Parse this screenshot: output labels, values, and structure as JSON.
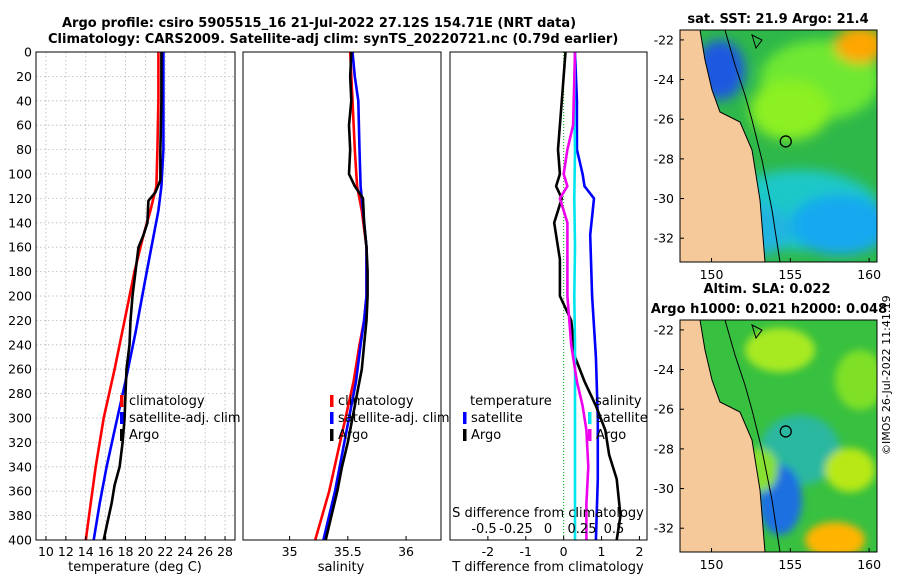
{
  "header": {
    "title_line1": "Argo profile: csiro 5905515_16 21-Jul-2022 27.12S 154.71E (NRT data)",
    "title_line2": "Climatology: CARS2009. Satellite-adj clim: synTS_20220721.nc (0.79d earlier)"
  },
  "colors": {
    "climatology": "#ff0000",
    "satellite": "#0000ff",
    "argo": "#000000",
    "sal_sat": "#00e5ee",
    "sal_argo": "#ee00ee",
    "land": "#f5c99a"
  },
  "chart_data": [
    {
      "type": "line",
      "name": "temperature-panel",
      "xlabel": "temperature (deg C)",
      "xlim": [
        9,
        29
      ],
      "ylim": [
        0,
        400
      ],
      "xticks": [
        10,
        12,
        14,
        16,
        18,
        20,
        22,
        24,
        26,
        28
      ],
      "yticks": [
        0,
        20,
        40,
        60,
        80,
        100,
        120,
        140,
        160,
        180,
        200,
        220,
        240,
        260,
        280,
        300,
        320,
        340,
        360,
        380,
        400
      ],
      "legend": [
        "climatology",
        "satellite-adj. clim",
        "Argo"
      ],
      "series": [
        {
          "name": "climatology",
          "color": "#ff0000",
          "points": [
            [
              21.3,
              0
            ],
            [
              21.3,
              40
            ],
            [
              21.2,
              80
            ],
            [
              21.1,
              110
            ],
            [
              20.5,
              130
            ],
            [
              19.8,
              150
            ],
            [
              18.9,
              180
            ],
            [
              17.9,
              220
            ],
            [
              16.9,
              260
            ],
            [
              15.8,
              300
            ],
            [
              15.0,
              340
            ],
            [
              14.5,
              370
            ],
            [
              14.0,
              400
            ]
          ]
        },
        {
          "name": "satellite-adj. clim",
          "color": "#0000ff",
          "points": [
            [
              21.8,
              0
            ],
            [
              21.8,
              40
            ],
            [
              21.8,
              80
            ],
            [
              21.6,
              110
            ],
            [
              21.3,
              130
            ],
            [
              20.6,
              160
            ],
            [
              19.9,
              190
            ],
            [
              19.0,
              230
            ],
            [
              18.0,
              270
            ],
            [
              16.9,
              310
            ],
            [
              16.1,
              340
            ],
            [
              15.4,
              370
            ],
            [
              14.8,
              400
            ]
          ]
        },
        {
          "name": "Argo",
          "color": "#000000",
          "points": [
            [
              21.6,
              0
            ],
            [
              21.6,
              40
            ],
            [
              21.5,
              80
            ],
            [
              21.5,
              105
            ],
            [
              21.0,
              115
            ],
            [
              20.3,
              122
            ],
            [
              20.2,
              140
            ],
            [
              19.8,
              150
            ],
            [
              19.3,
              160
            ],
            [
              19.0,
              180
            ],
            [
              18.7,
              200
            ],
            [
              18.5,
              220
            ],
            [
              18.4,
              240
            ],
            [
              18.1,
              260
            ],
            [
              18.0,
              280
            ],
            [
              17.9,
              300
            ],
            [
              17.7,
              320
            ],
            [
              17.4,
              340
            ],
            [
              16.9,
              355
            ],
            [
              16.6,
              370
            ],
            [
              16.2,
              385
            ],
            [
              15.8,
              400
            ]
          ]
        }
      ]
    },
    {
      "type": "line",
      "name": "salinity-panel",
      "xlabel": "salinity",
      "xlim": [
        34.6,
        36.3
      ],
      "ylim": [
        0,
        400
      ],
      "xticks": [
        35,
        35.5,
        36
      ],
      "legend": [
        "climatology",
        "satellite-adj. clim",
        "Argo"
      ],
      "series": [
        {
          "name": "climatology",
          "color": "#ff0000",
          "points": [
            [
              35.52,
              0
            ],
            [
              35.54,
              40
            ],
            [
              35.56,
              80
            ],
            [
              35.58,
              110
            ],
            [
              35.62,
              130
            ],
            [
              35.66,
              160
            ],
            [
              35.66,
              180
            ],
            [
              35.66,
              200
            ],
            [
              35.64,
              220
            ],
            [
              35.6,
              240
            ],
            [
              35.55,
              270
            ],
            [
              35.48,
              300
            ],
            [
              35.41,
              330
            ],
            [
              35.34,
              360
            ],
            [
              35.28,
              380
            ],
            [
              35.22,
              400
            ]
          ]
        },
        {
          "name": "satellite-adj. clim",
          "color": "#0000ff",
          "points": [
            [
              35.54,
              0
            ],
            [
              35.56,
              20
            ],
            [
              35.59,
              40
            ],
            [
              35.6,
              80
            ],
            [
              35.61,
              110
            ],
            [
              35.63,
              130
            ],
            [
              35.66,
              160
            ],
            [
              35.66,
              180
            ],
            [
              35.66,
              200
            ],
            [
              35.64,
              220
            ],
            [
              35.61,
              240
            ],
            [
              35.57,
              270
            ],
            [
              35.51,
              300
            ],
            [
              35.45,
              330
            ],
            [
              35.39,
              360
            ],
            [
              35.34,
              380
            ],
            [
              35.29,
              400
            ]
          ]
        },
        {
          "name": "Argo",
          "color": "#000000",
          "points": [
            [
              35.53,
              0
            ],
            [
              35.52,
              20
            ],
            [
              35.53,
              40
            ],
            [
              35.51,
              60
            ],
            [
              35.52,
              80
            ],
            [
              35.51,
              100
            ],
            [
              35.56,
              110
            ],
            [
              35.63,
              120
            ],
            [
              35.64,
              140
            ],
            [
              35.66,
              160
            ],
            [
              35.67,
              180
            ],
            [
              35.67,
              200
            ],
            [
              35.66,
              220
            ],
            [
              35.64,
              240
            ],
            [
              35.62,
              260
            ],
            [
              35.58,
              280
            ],
            [
              35.54,
              300
            ],
            [
              35.5,
              320
            ],
            [
              35.45,
              340
            ],
            [
              35.41,
              360
            ],
            [
              35.36,
              380
            ],
            [
              35.31,
              400
            ]
          ]
        }
      ]
    },
    {
      "type": "line",
      "name": "difference-panel",
      "xlabel": "T difference from climatology",
      "xlabel_top": "S difference from climatology",
      "xlim": [
        -3,
        2.2
      ],
      "ylim": [
        0,
        400
      ],
      "xticks": [
        -2,
        -1,
        0,
        1,
        2
      ],
      "s_ticks": [
        "-0.5",
        "-0.25",
        "0",
        "0.25",
        "0.5"
      ],
      "legend_left_title": "temperature",
      "legend_right_title": "salinity",
      "legend_left": [
        "satellite",
        "Argo"
      ],
      "legend_right": [
        "satellite",
        "Argo"
      ],
      "series": [
        {
          "name": "T satellite",
          "color": "#0000ff",
          "points": [
            [
              0.3,
              0
            ],
            [
              0.35,
              40
            ],
            [
              0.35,
              80
            ],
            [
              0.5,
              100
            ],
            [
              0.55,
              110
            ],
            [
              0.8,
              120
            ],
            [
              0.7,
              150
            ],
            [
              0.75,
              200
            ],
            [
              0.85,
              250
            ],
            [
              0.9,
              300
            ],
            [
              0.9,
              350
            ],
            [
              0.85,
              400
            ]
          ]
        },
        {
          "name": "T Argo",
          "color": "#000000",
          "points": [
            [
              0.05,
              0
            ],
            [
              -0.05,
              40
            ],
            [
              -0.15,
              80
            ],
            [
              -0.1,
              100
            ],
            [
              -0.2,
              110
            ],
            [
              -0.05,
              120
            ],
            [
              -0.25,
              140
            ],
            [
              -0.1,
              170
            ],
            [
              -0.1,
              200
            ],
            [
              0.2,
              220
            ],
            [
              0.3,
              250
            ],
            [
              0.55,
              270
            ],
            [
              0.85,
              290
            ],
            [
              1.1,
              310
            ],
            [
              1.2,
              330
            ],
            [
              1.4,
              350
            ],
            [
              1.5,
              380
            ],
            [
              1.4,
              400
            ]
          ]
        },
        {
          "name": "S satellite",
          "color": "#00e5ee",
          "points": [
            [
              0.3,
              0
            ],
            [
              0.28,
              40
            ],
            [
              0.3,
              80
            ],
            [
              0.28,
              120
            ],
            [
              0.3,
              160
            ],
            [
              0.28,
              200
            ],
            [
              0.3,
              240
            ],
            [
              0.3,
              280
            ],
            [
              0.3,
              320
            ],
            [
              0.3,
              360
            ],
            [
              0.3,
              400
            ]
          ]
        },
        {
          "name": "S Argo",
          "color": "#ee00ee",
          "points": [
            [
              0.3,
              0
            ],
            [
              0.25,
              60
            ],
            [
              0.1,
              80
            ],
            [
              0.0,
              100
            ],
            [
              0.1,
              110
            ],
            [
              -0.1,
              120
            ],
            [
              0.1,
              140
            ],
            [
              0.1,
              200
            ],
            [
              0.2,
              240
            ],
            [
              0.35,
              270
            ],
            [
              0.5,
              290
            ],
            [
              0.6,
              310
            ],
            [
              0.65,
              340
            ],
            [
              0.6,
              370
            ],
            [
              0.6,
              400
            ]
          ]
        }
      ]
    },
    {
      "type": "heatmap",
      "name": "sst-map",
      "title": "sat. SST: 21.9 Argo: 21.4",
      "xticks": [
        150,
        155,
        160
      ],
      "yticks": [
        -22,
        -24,
        -26,
        -28,
        -30,
        -32
      ],
      "xlim": [
        148,
        160.5
      ],
      "ylim": [
        -33.2,
        -21.5
      ],
      "profile_location": [
        154.71,
        -27.12
      ]
    },
    {
      "type": "heatmap",
      "name": "sla-map",
      "title": "Altim. SLA: 0.022",
      "subtitle": "Argo h1000: 0.021 h2000: 0.048",
      "xticks": [
        150,
        155,
        160
      ],
      "yticks": [
        -22,
        -24,
        -26,
        -28,
        -30,
        -32
      ],
      "xlim": [
        148,
        160.5
      ],
      "ylim": [
        -33.2,
        -21.5
      ],
      "profile_location": [
        154.71,
        -27.12
      ]
    }
  ],
  "timestamp": "©IMOS 26-Jul-2022 11:41:19"
}
